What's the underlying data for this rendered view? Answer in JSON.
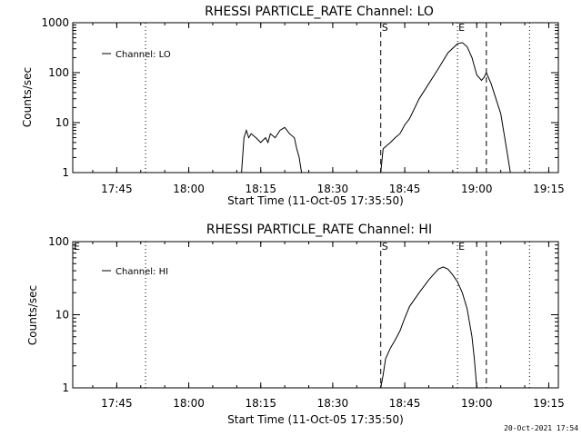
{
  "chart_data": [
    {
      "type": "line",
      "title": "RHESSI PARTICLE_RATE Channel: LO",
      "xlabel": "Start Time (11-Oct-05 17:35:50)",
      "ylabel": "Counts/sec",
      "x_tick_labels": [
        "17:45",
        "18:00",
        "18:15",
        "18:30",
        "18:45",
        "19:00",
        "19:15"
      ],
      "y_tick_labels": [
        "1",
        "10",
        "100",
        "1000"
      ],
      "y_scale": "log",
      "ylim": [
        1,
        1000
      ],
      "xlim": [
        "17:35:50",
        "19:17:00"
      ],
      "legend": {
        "label": "Channel: LO",
        "position": "top-left"
      },
      "markers": [
        {
          "label": "S",
          "time": "18:40",
          "style": "dashed"
        },
        {
          "label": "E",
          "time": "18:56",
          "style": "dotted"
        }
      ],
      "dashed_lines": [
        "18:40",
        "19:02"
      ],
      "dotted_lines": [
        "17:51",
        "18:56",
        "19:11"
      ],
      "series": [
        {
          "segments": [
            [
              [
                "18:11",
                1
              ],
              [
                "18:11:30",
                5
              ],
              [
                "18:12",
                7
              ],
              [
                "18:12:30",
                5
              ],
              [
                "18:13",
                6
              ],
              [
                "18:14",
                5
              ],
              [
                "18:15",
                4
              ],
              [
                "18:16",
                5
              ],
              [
                "18:16:30",
                4
              ],
              [
                "18:17",
                6
              ],
              [
                "18:18",
                5
              ],
              [
                "18:19",
                7
              ],
              [
                "18:20",
                8
              ],
              [
                "18:21",
                6
              ],
              [
                "18:22",
                5
              ],
              [
                "18:22:30",
                3
              ],
              [
                "18:23",
                2
              ],
              [
                "18:23:30",
                1
              ]
            ],
            [
              [
                "18:40",
                1
              ],
              [
                "18:40:30",
                3
              ],
              [
                "18:42",
                4
              ],
              [
                "18:43",
                5
              ],
              [
                "18:44",
                6
              ],
              [
                "18:45",
                9
              ],
              [
                "18:46",
                12
              ],
              [
                "18:48",
                30
              ],
              [
                "18:50",
                60
              ],
              [
                "18:52",
                120
              ],
              [
                "18:54",
                250
              ],
              [
                "18:56",
                380
              ],
              [
                "18:57",
                400
              ],
              [
                "18:58",
                330
              ],
              [
                "18:59",
                200
              ],
              [
                "19:00",
                90
              ],
              [
                "19:01",
                70
              ],
              [
                "19:01:30",
                80
              ],
              [
                "19:02",
                100
              ],
              [
                "19:03",
                60
              ],
              [
                "19:04",
                30
              ],
              [
                "19:05",
                15
              ],
              [
                "19:06",
                4
              ],
              [
                "19:06:30",
                2
              ],
              [
                "19:07",
                1
              ]
            ]
          ]
        }
      ]
    },
    {
      "type": "line",
      "title": "RHESSI PARTICLE_RATE Channel: HI",
      "xlabel": "Start Time (11-Oct-05 17:35:50)",
      "ylabel": "Counts/sec",
      "x_tick_labels": [
        "17:45",
        "18:00",
        "18:15",
        "18:30",
        "18:45",
        "19:00",
        "19:15"
      ],
      "y_tick_labels": [
        "1",
        "10",
        "100"
      ],
      "y_scale": "log",
      "ylim": [
        1,
        100
      ],
      "xlim": [
        "17:35:50",
        "19:17:00"
      ],
      "legend": {
        "label": "Channel: HI",
        "position": "top-left"
      },
      "markers": [
        {
          "label": "E",
          "time": "17:35:50",
          "style": "dashed"
        },
        {
          "label": "S",
          "time": "18:40",
          "style": "dashed"
        },
        {
          "label": "E",
          "time": "18:56",
          "style": "dotted"
        }
      ],
      "dashed_lines": [
        "18:40",
        "19:02"
      ],
      "dotted_lines": [
        "17:51",
        "18:56",
        "19:11"
      ],
      "series": [
        {
          "segments": [
            [
              [
                "18:40",
                1
              ],
              [
                "18:40:30",
                1.5
              ],
              [
                "18:41",
                2.5
              ],
              [
                "18:42",
                3.5
              ],
              [
                "18:43",
                4.5
              ],
              [
                "18:44",
                6
              ],
              [
                "18:45",
                9
              ],
              [
                "18:46",
                13
              ],
              [
                "18:48",
                20
              ],
              [
                "18:50",
                30
              ],
              [
                "18:52",
                42
              ],
              [
                "18:53",
                45
              ],
              [
                "18:54",
                42
              ],
              [
                "18:55",
                35
              ],
              [
                "18:56",
                28
              ],
              [
                "18:57",
                20
              ],
              [
                "18:58",
                12
              ],
              [
                "18:59",
                5
              ],
              [
                "18:59:30",
                2.5
              ],
              [
                "19:00",
                1
              ]
            ]
          ]
        }
      ]
    }
  ],
  "timestamp": "20-Oct-2021 17:54"
}
